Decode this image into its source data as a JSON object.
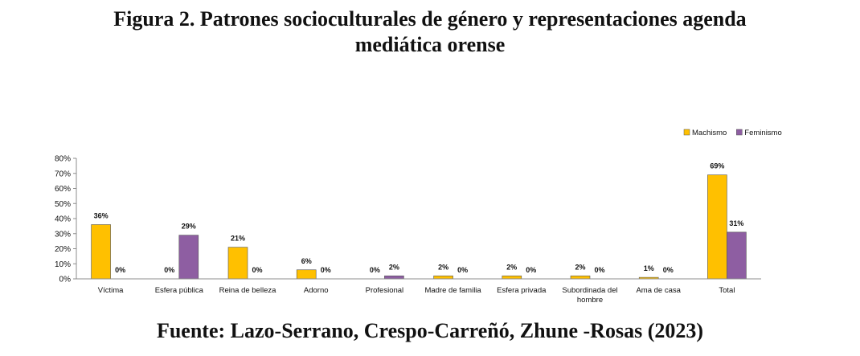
{
  "figure": {
    "title_line1": "Figura 2. Patrones socioculturales de género y representaciones agenda",
    "title_line2": "mediática orense",
    "source": "Fuente: Lazo-Serrano, Crespo-Carreñó, Zhune -Rosas (2023)"
  },
  "chart_data": {
    "type": "bar",
    "categories": [
      "Víctima",
      "Esfera pública",
      "Reina de belleza",
      "Adorno",
      "Profesional",
      "Madre de familia",
      "Esfera privada",
      "Subordinada del hombre",
      "Ama de casa",
      "Total"
    ],
    "category_lines": [
      [
        "Víctima"
      ],
      [
        "Esfera pública"
      ],
      [
        "Reina de belleza"
      ],
      [
        "Adorno"
      ],
      [
        "Profesional"
      ],
      [
        "Madre de familia"
      ],
      [
        "Esfera privada"
      ],
      [
        "Subordinada del",
        "hombre"
      ],
      [
        "Ama de casa"
      ],
      [
        "Total"
      ]
    ],
    "series": [
      {
        "name": "Machismo",
        "values": [
          36,
          0,
          21,
          6,
          0,
          2,
          2,
          2,
          1,
          69
        ],
        "labels": [
          "36%",
          "0%",
          "21%",
          "6%",
          "0%",
          "2%",
          "2%",
          "2%",
          "1%",
          "69%"
        ],
        "color": "#FFC000"
      },
      {
        "name": "Feminismo",
        "values": [
          0,
          29,
          0,
          0,
          2,
          0,
          0,
          0,
          0,
          31
        ],
        "labels": [
          "0%",
          "29%",
          "0%",
          "0%",
          "2%",
          "0%",
          "0%",
          "0%",
          "0%",
          "31%"
        ],
        "color": "#8E5EA2"
      }
    ],
    "ylim": [
      0,
      80
    ],
    "yticks": [
      "0%",
      "10%",
      "20%",
      "30%",
      "40%",
      "50%",
      "60%",
      "70%",
      "80%"
    ],
    "legend_position": "top-right",
    "grid": false,
    "xlabel": "",
    "ylabel": ""
  }
}
